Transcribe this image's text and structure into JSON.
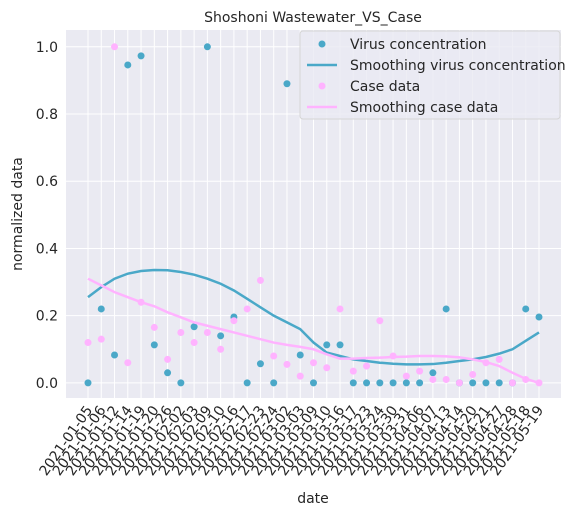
{
  "chart_data": {
    "type": "scatter-line",
    "title": "Shoshoni Wastewater_VS_Case",
    "x_label": "date",
    "y_label": "normalized data",
    "categories": [
      "2021-01-05",
      "2021-01-06",
      "2021-01-12",
      "2021-01-14",
      "2021-01-19",
      "2021-01-20",
      "2021-01-26",
      "2021-02-02",
      "2021-02-03",
      "2021-02-09",
      "2021-02-10",
      "2021-02-16",
      "2021-02-17",
      "2021-02-23",
      "2021-02-24",
      "2021-03-02",
      "2021-03-03",
      "2021-03-09",
      "2021-03-10",
      "2021-03-16",
      "2021-03-17",
      "2021-03-23",
      "2021-03-24",
      "2021-03-30",
      "2021-03-31",
      "2021-04-06",
      "2021-04-07",
      "2021-04-13",
      "2021-04-14",
      "2021-04-20",
      "2021-04-21",
      "2021-04-27",
      "2021-04-28",
      "2021-05-18",
      "2021-05-19"
    ],
    "ylim": [
      -0.045,
      1.05
    ],
    "yticks": [
      {
        "value": 0,
        "label": "0.0"
      },
      {
        "value": 0.2,
        "label": "0.2"
      },
      {
        "value": 0.4,
        "label": "0.4"
      },
      {
        "value": 0.6,
        "label": "0.6"
      },
      {
        "value": 0.8,
        "label": "0.8"
      },
      {
        "value": 1,
        "label": "1.0"
      }
    ],
    "grid": true,
    "legend": "upper right",
    "series": [
      {
        "name": "Virus concentration",
        "kind": "scatter",
        "color": "#4aa8c8",
        "values": [
          0,
          0.22,
          0.083,
          0.946,
          0.973,
          0.113,
          0.03,
          0,
          0.167,
          1.0,
          0.14,
          0.196,
          0,
          0.057,
          0,
          0.89,
          0.083,
          0,
          0.113,
          0.113,
          0,
          0,
          0,
          0,
          0,
          0,
          0.03,
          0.22,
          0,
          0,
          0,
          0,
          0,
          0.22,
          0.196
        ]
      },
      {
        "name": "Smoothing virus concentration",
        "kind": "line",
        "color": "#4aa8c8",
        "values": [
          0.255,
          0.285,
          0.31,
          0.325,
          0.333,
          0.336,
          0.335,
          0.33,
          0.322,
          0.31,
          0.295,
          0.275,
          0.25,
          0.225,
          0.2,
          0.18,
          0.16,
          0.12,
          0.09,
          0.08,
          0.07,
          0.065,
          0.06,
          0.057,
          0.055,
          0.055,
          0.056,
          0.06,
          0.065,
          0.07,
          0.077,
          0.087,
          0.1,
          0.125,
          0.15
        ]
      },
      {
        "name": "Case data",
        "kind": "scatter",
        "color": "#ffb3ff",
        "values": [
          0.12,
          0.13,
          1.0,
          0.06,
          0.24,
          0.165,
          0.07,
          0.15,
          0.12,
          0.15,
          0.1,
          0.185,
          0.22,
          0.305,
          0.08,
          0.055,
          0.02,
          0.06,
          0.045,
          0.22,
          0.035,
          0.05,
          0.185,
          0.08,
          0.02,
          0.035,
          0.01,
          0.01,
          0,
          0.025,
          0.06,
          0.07,
          0,
          0.01,
          0
        ]
      },
      {
        "name": "Smoothing case data",
        "kind": "line",
        "color": "#ffb3ff",
        "values": [
          0.31,
          0.29,
          0.27,
          0.255,
          0.24,
          0.228,
          0.21,
          0.195,
          0.18,
          0.17,
          0.16,
          0.15,
          0.14,
          0.13,
          0.12,
          0.113,
          0.107,
          0.1,
          0.085,
          0.072,
          0.072,
          0.074,
          0.075,
          0.077,
          0.078,
          0.08,
          0.08,
          0.079,
          0.076,
          0.07,
          0.062,
          0.05,
          0.03,
          0.012,
          0
        ]
      }
    ]
  }
}
